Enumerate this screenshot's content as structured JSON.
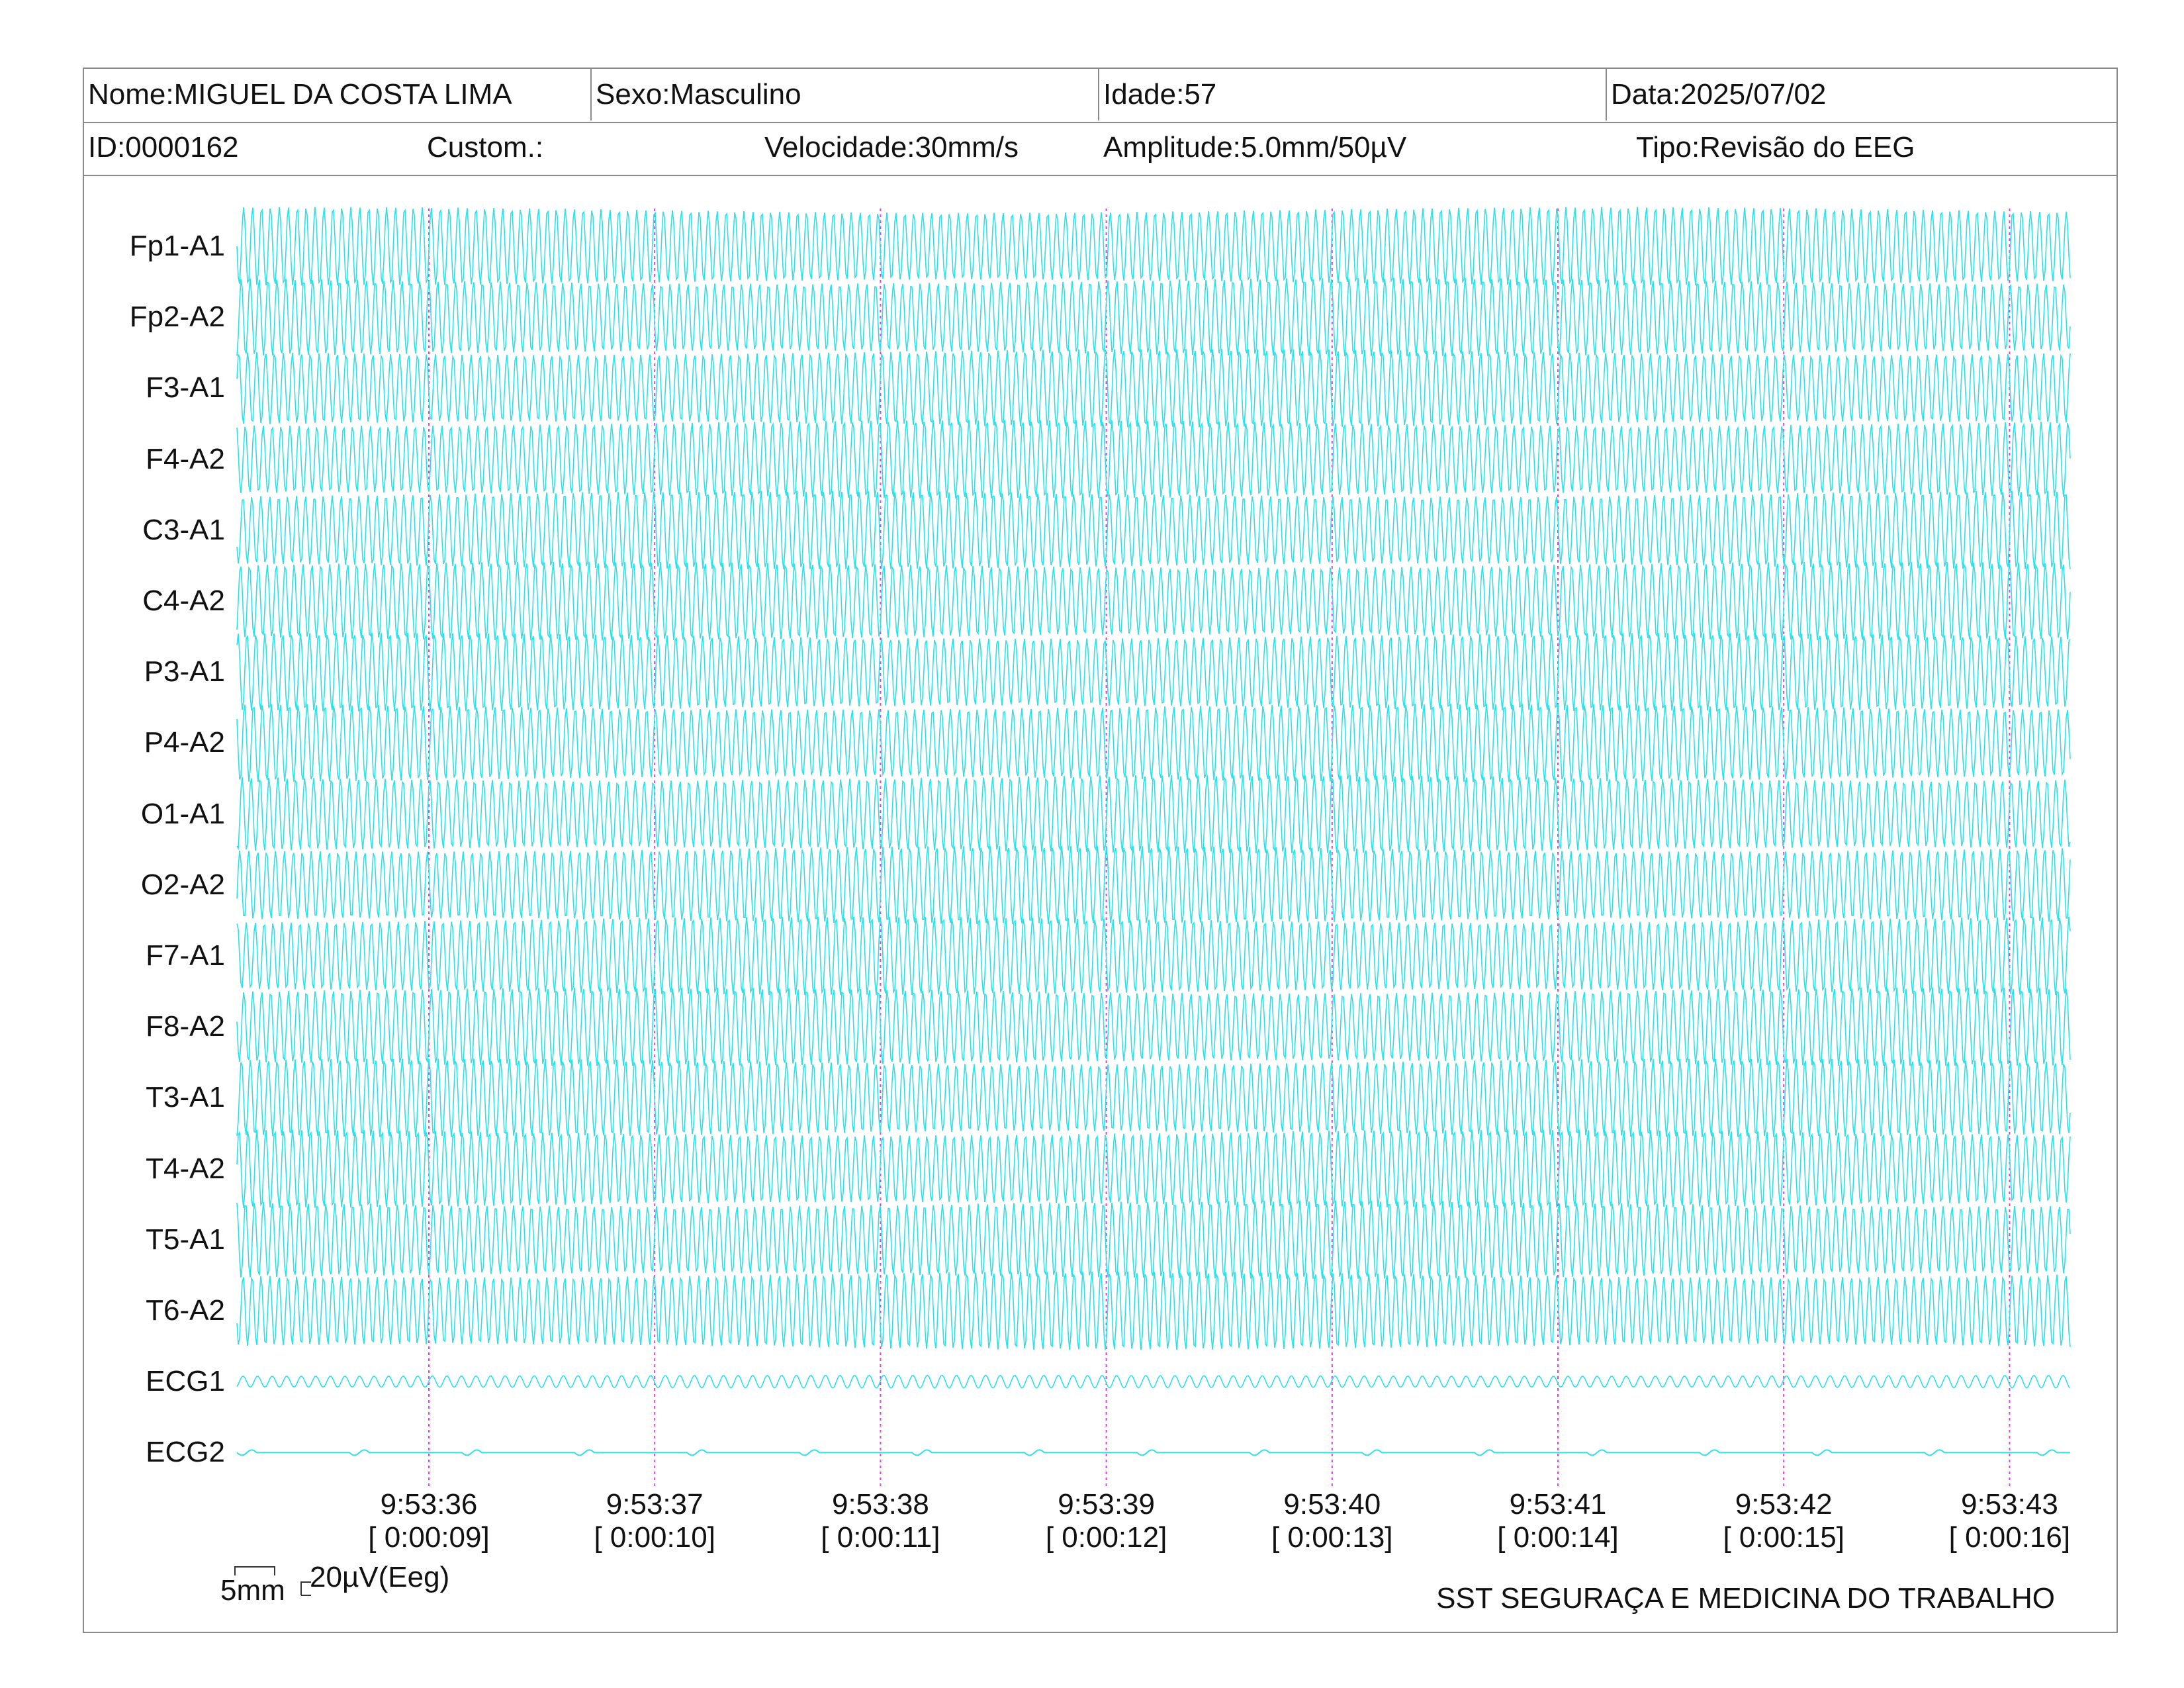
{
  "header": {
    "nome": "Nome:MIGUEL DA COSTA LIMA",
    "sexo": "Sexo:Masculino",
    "idade": "Idade:57",
    "data": "Data:2025/07/02",
    "id": "ID:0000162",
    "custom": "Custom.:",
    "velocidade": "Velocidade:30mm/s",
    "amplitude": "Amplitude:5.0mm/50µV",
    "tipo": "Tipo:Revisão do EEG"
  },
  "channels": [
    {
      "label": "Fp1-A1"
    },
    {
      "label": "Fp2-A2"
    },
    {
      "label": "F3-A1"
    },
    {
      "label": "F4-A2"
    },
    {
      "label": "C3-A1"
    },
    {
      "label": "C4-A2"
    },
    {
      "label": "P3-A1"
    },
    {
      "label": "P4-A2"
    },
    {
      "label": "O1-A1"
    },
    {
      "label": "O2-A2"
    },
    {
      "label": "F7-A1"
    },
    {
      "label": "F8-A2"
    },
    {
      "label": "T3-A1"
    },
    {
      "label": "T4-A2"
    },
    {
      "label": "T5-A1"
    },
    {
      "label": "T6-A2"
    },
    {
      "label": "ECG1"
    },
    {
      "label": "ECG2"
    }
  ],
  "time_marks": [
    {
      "clock": "9:53:36",
      "elapsed": "[ 0:00:09]"
    },
    {
      "clock": "9:53:37",
      "elapsed": "[ 0:00:10]"
    },
    {
      "clock": "9:53:38",
      "elapsed": "[ 0:00:11]"
    },
    {
      "clock": "9:53:39",
      "elapsed": "[ 0:00:12]"
    },
    {
      "clock": "9:53:40",
      "elapsed": "[ 0:00:13]"
    },
    {
      "clock": "9:53:41",
      "elapsed": "[ 0:00:14]"
    },
    {
      "clock": "9:53:42",
      "elapsed": "[ 0:00:15]"
    },
    {
      "clock": "9:53:43",
      "elapsed": "[ 0:00:16]"
    }
  ],
  "scale": {
    "time": "5mm",
    "amplitude": "20µV(Eeg)"
  },
  "footer": {
    "company": "SST SEGURAÇA E MEDICINA DO TRABALHO"
  },
  "colors": {
    "trace": "#2fe0e8",
    "time_marker": "#e040e0",
    "border": "#8a8a8a"
  }
}
